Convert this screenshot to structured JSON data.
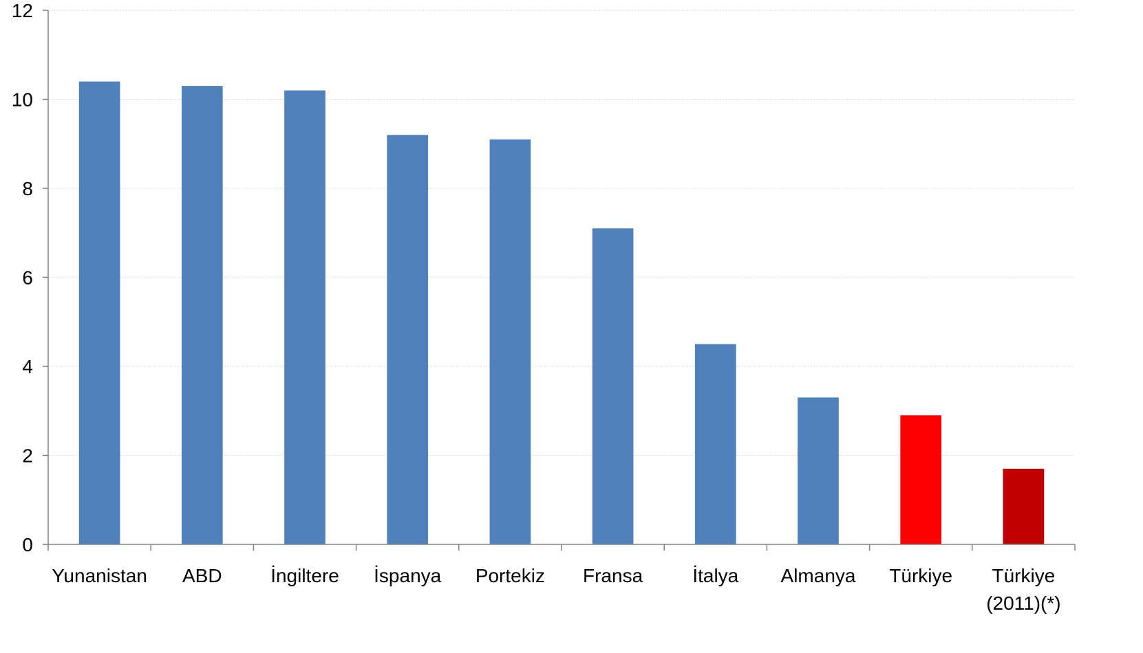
{
  "chart_data": {
    "type": "bar",
    "categories": [
      "Yunanistan",
      "ABD",
      "İngiltere",
      "İspanya",
      "Portekiz",
      "Fransa",
      "İtalya",
      "Almanya",
      "Türkiye",
      "Türkiye (2011)(*)"
    ],
    "category_lines": [
      [
        "Yunanistan"
      ],
      [
        "ABD"
      ],
      [
        "İngiltere"
      ],
      [
        "İspanya"
      ],
      [
        "Portekiz"
      ],
      [
        "Fransa"
      ],
      [
        "İtalya"
      ],
      [
        "Almanya"
      ],
      [
        "Türkiye"
      ],
      [
        "Türkiye",
        "(2011)(*)"
      ]
    ],
    "values": [
      10.4,
      10.3,
      10.2,
      9.2,
      9.1,
      7.1,
      4.5,
      3.3,
      2.9,
      1.7
    ],
    "colors": [
      "#4f81bd",
      "#4f81bd",
      "#4f81bd",
      "#4f81bd",
      "#4f81bd",
      "#4f81bd",
      "#4f81bd",
      "#4f81bd",
      "#ff0000",
      "#c00000"
    ],
    "ylim": [
      0,
      12
    ],
    "yticks": [
      0,
      2,
      4,
      6,
      8,
      10,
      12
    ],
    "grid": true,
    "title": "",
    "xlabel": "",
    "ylabel": ""
  }
}
